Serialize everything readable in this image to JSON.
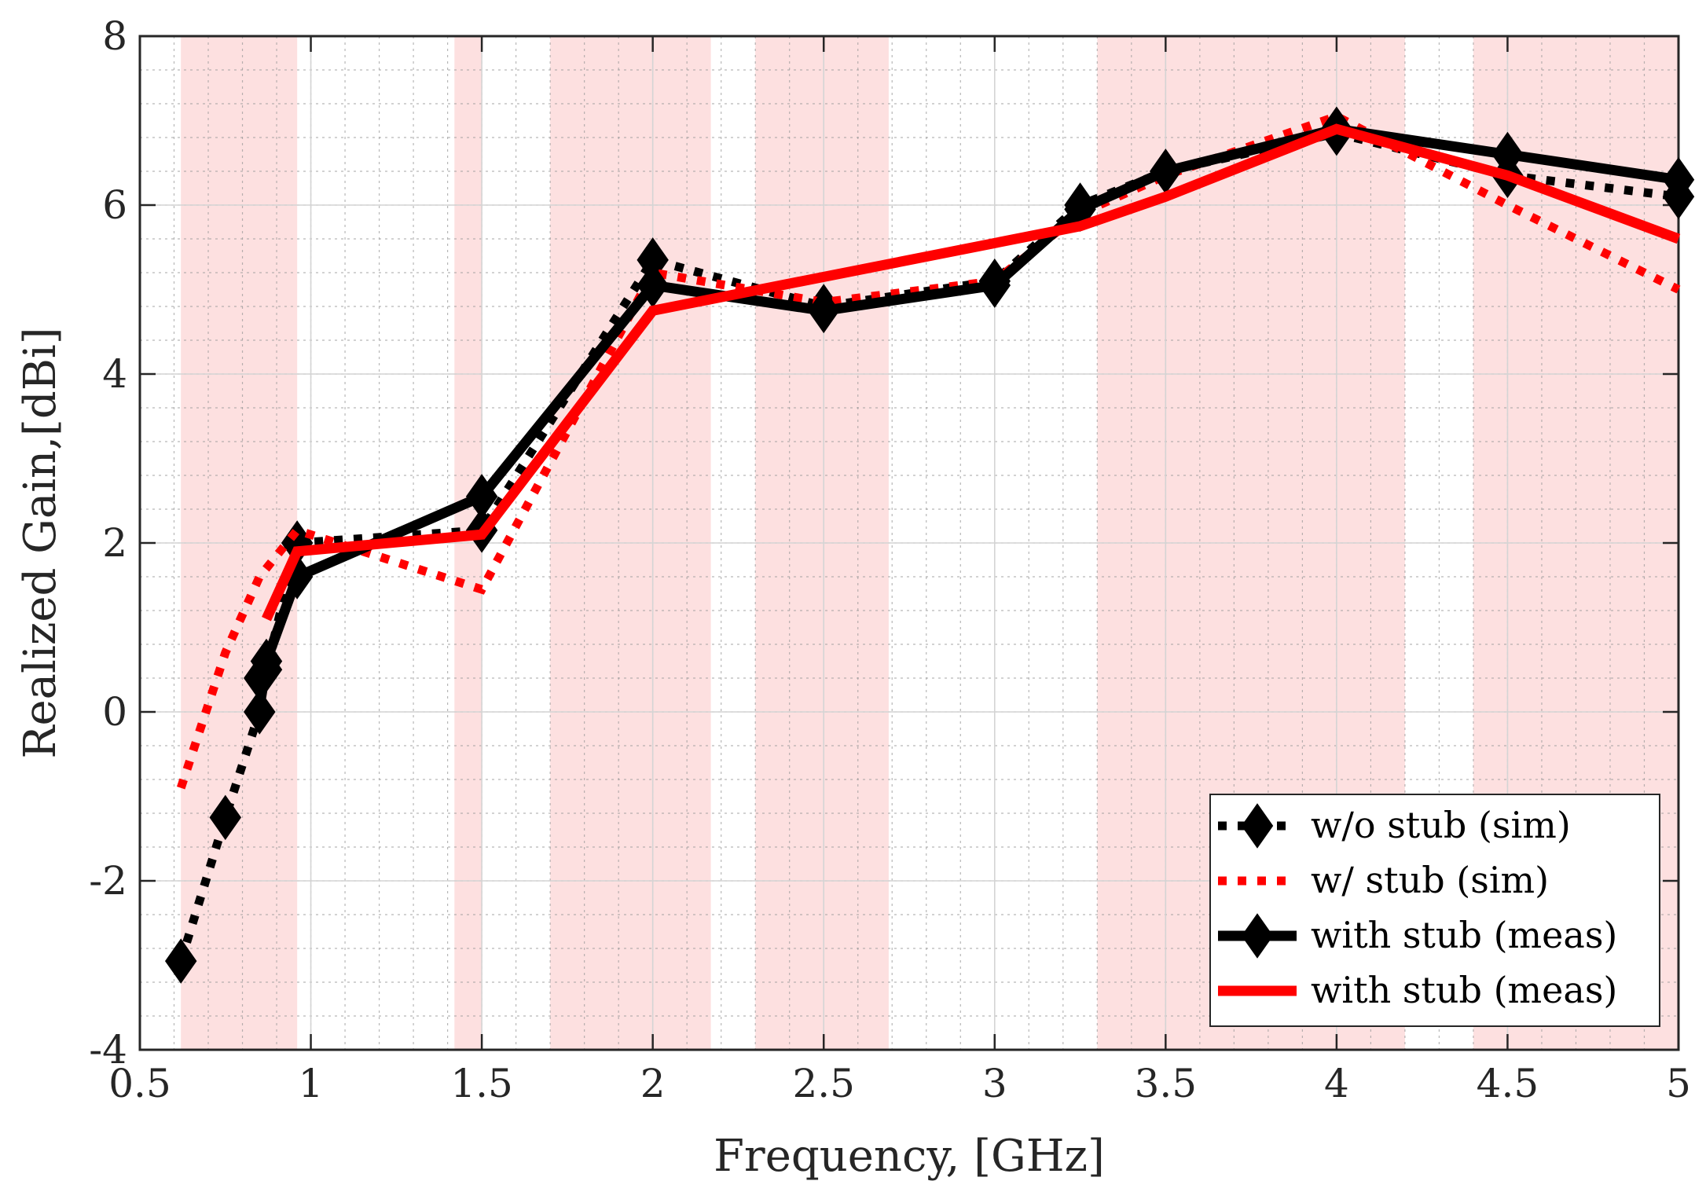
{
  "chart_data": {
    "type": "line",
    "title": "",
    "xlabel": "Frequency, [GHz]",
    "ylabel": "Realized Gain,[dBi]",
    "xlim": [
      0.5,
      5
    ],
    "ylim": [
      -4,
      8
    ],
    "xticks": [
      0.5,
      1,
      1.5,
      2,
      2.5,
      3,
      3.5,
      4,
      4.5,
      5
    ],
    "xtick_labels": [
      "0.5",
      "1",
      "1.5",
      "2",
      "2.5",
      "3",
      "3.5",
      "4",
      "4.5",
      "5"
    ],
    "yticks": [
      -4,
      -2,
      0,
      2,
      4,
      6,
      8
    ],
    "ytick_labels": [
      "-4",
      "-2",
      "0",
      "2",
      "4",
      "6",
      "8"
    ],
    "grid": true,
    "minor_grid": true,
    "legend_position": "bottom-right",
    "shaded_bands": [
      {
        "from": 0.62,
        "to": 0.96
      },
      {
        "from": 1.42,
        "to": 1.5
      },
      {
        "from": 1.7,
        "to": 2.17
      },
      {
        "from": 2.3,
        "to": 2.69
      },
      {
        "from": 3.3,
        "to": 4.2
      },
      {
        "from": 4.4,
        "to": 5.0
      }
    ],
    "band_color": "#fde0e0",
    "series": [
      {
        "name": "w/o stub (sim)",
        "color": "#000000",
        "style": "dotted",
        "marker": "diamond",
        "x": [
          0.62,
          0.75,
          0.85,
          0.87,
          0.96,
          1.5,
          2.0,
          2.5,
          3.0,
          3.25,
          3.5,
          4.0,
          4.5,
          5.0
        ],
        "y": [
          -2.95,
          -1.25,
          0.0,
          0.5,
          2.0,
          2.15,
          5.35,
          4.8,
          5.1,
          6.0,
          6.4,
          6.85,
          6.35,
          6.1
        ]
      },
      {
        "name": "w/ stub (sim)",
        "color": "#ff0000",
        "style": "dotted",
        "marker": "none",
        "x": [
          0.62,
          0.75,
          0.85,
          0.96,
          1.5,
          2.0,
          2.5,
          3.0,
          3.25,
          3.5,
          4.0,
          4.5,
          5.0
        ],
        "y": [
          -0.9,
          0.7,
          1.6,
          2.15,
          1.45,
          5.2,
          4.85,
          5.1,
          5.9,
          6.35,
          7.05,
          6.0,
          5.0
        ]
      },
      {
        "name": "with stub (meas)",
        "color": "#000000",
        "style": "solid",
        "marker": "diamond",
        "x": [
          0.85,
          0.87,
          0.96,
          1.5,
          2.0,
          2.5,
          3.0,
          3.25,
          3.5,
          4.0,
          4.5,
          5.0
        ],
        "y": [
          0.4,
          0.6,
          1.6,
          2.55,
          5.05,
          4.75,
          5.05,
          5.95,
          6.4,
          6.9,
          6.6,
          6.3
        ]
      },
      {
        "name": "with stub (meas)",
        "color": "#ff0000",
        "style": "solid",
        "marker": "none",
        "x": [
          0.87,
          0.96,
          1.5,
          2.0,
          3.25,
          3.5,
          4.0,
          4.5,
          5.0
        ],
        "y": [
          1.1,
          1.9,
          2.1,
          4.75,
          5.75,
          6.1,
          6.9,
          6.35,
          5.6
        ]
      }
    ]
  }
}
